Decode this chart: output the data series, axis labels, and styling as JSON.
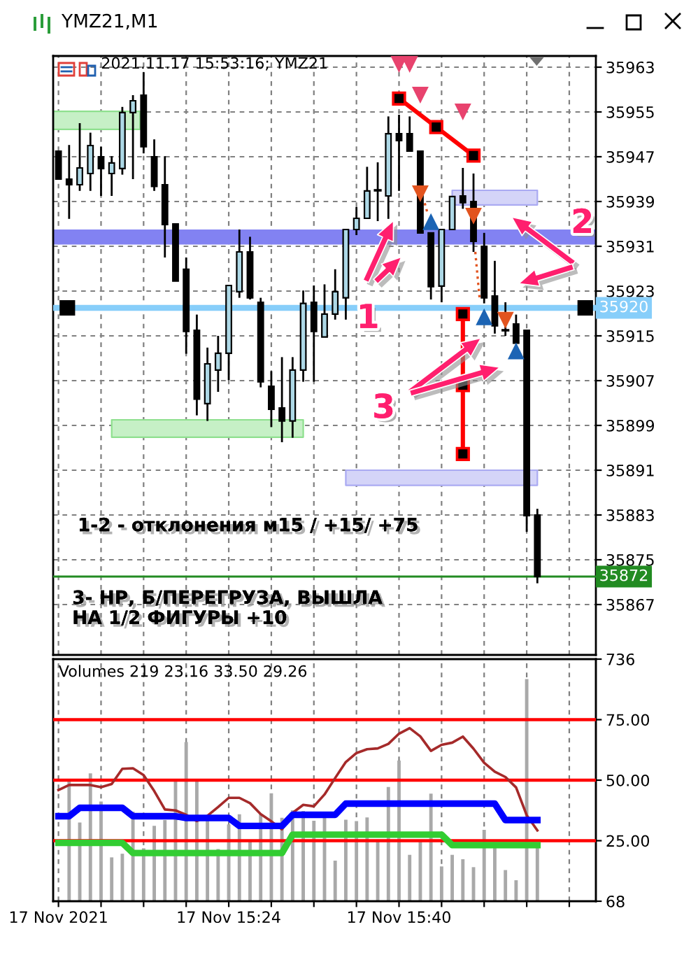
{
  "chart_data": [
    {
      "type": "candlestick",
      "title": "YMZ21,M1",
      "x": [
        "2021-11-17T15:08",
        "2021-11-17T15:09",
        "2021-11-17T15:10",
        "2021-11-17T15:11",
        "2021-11-17T15:12",
        "2021-11-17T15:13",
        "2021-11-17T15:14",
        "2021-11-17T15:15",
        "2021-11-17T15:16",
        "2021-11-17T15:17",
        "2021-11-17T15:18",
        "2021-11-17T15:19",
        "2021-11-17T15:20",
        "2021-11-17T15:21",
        "2021-11-17T15:22",
        "2021-11-17T15:23",
        "2021-11-17T15:24",
        "2021-11-17T15:25",
        "2021-11-17T15:26",
        "2021-11-17T15:27",
        "2021-11-17T15:28",
        "2021-11-17T15:29",
        "2021-11-17T15:30",
        "2021-11-17T15:31",
        "2021-11-17T15:32",
        "2021-11-17T15:33",
        "2021-11-17T15:34",
        "2021-11-17T15:35",
        "2021-11-17T15:36",
        "2021-11-17T15:37",
        "2021-11-17T15:38",
        "2021-11-17T15:39",
        "2021-11-17T15:40",
        "2021-11-17T15:41",
        "2021-11-17T15:42",
        "2021-11-17T15:43",
        "2021-11-17T15:44",
        "2021-11-17T15:45",
        "2021-11-17T15:46",
        "2021-11-17T15:47",
        "2021-11-17T15:48",
        "2021-11-17T15:49",
        "2021-11-17T15:50",
        "2021-11-17T15:51",
        "2021-11-17T15:52",
        "2021-11-17T15:53"
      ],
      "ohlc": [
        [
          35948.0,
          35948.0,
          35943.0,
          35943.0
        ],
        [
          35943.0,
          35949.1,
          35935.9,
          35942.0
        ],
        [
          35942.0,
          35953.0,
          35940.9,
          35945.0
        ],
        [
          35944.0,
          35951.3,
          35940.9,
          35949.0
        ],
        [
          35947.0,
          35948.8,
          35940.0,
          35944.9
        ],
        [
          35944.0,
          35947.1,
          35940.0,
          35945.9
        ],
        [
          35944.9,
          35955.9,
          35943.8,
          35954.9
        ],
        [
          35954.9,
          35958.0,
          35943.0,
          35957.0
        ],
        [
          35958.0,
          35962.1,
          35947.6,
          35948.8
        ],
        [
          35947.0,
          35950.1,
          35940.9,
          35941.7
        ],
        [
          35942.0,
          35947.1,
          35929.0,
          35934.9
        ],
        [
          35935.0,
          35935.0,
          35924.8,
          35924.8
        ],
        [
          35926.9,
          35929.0,
          35911.8,
          35915.8
        ],
        [
          35916.0,
          35918.8,
          35900.8,
          35903.7
        ],
        [
          35902.9,
          35912.9,
          35899.8,
          35910.0
        ],
        [
          35908.9,
          35915.0,
          35905.0,
          35911.9
        ],
        [
          35911.9,
          35924.0,
          35907.1,
          35924.0
        ],
        [
          35922.9,
          35934.0,
          35921.8,
          35930.0
        ],
        [
          35930.0,
          35932.7,
          35921.5,
          35921.8
        ],
        [
          35921.0,
          35921.8,
          35905.8,
          35906.8
        ],
        [
          35906.0,
          35908.7,
          35898.7,
          35901.9
        ],
        [
          35902.1,
          35911.2,
          35896.0,
          35899.8
        ],
        [
          35899.8,
          35911.2,
          35896.8,
          35908.9
        ],
        [
          35908.9,
          35923.1,
          35906.8,
          35920.8
        ],
        [
          35921.0,
          35924.0,
          35906.8,
          35915.8
        ],
        [
          35914.8,
          35924.2,
          35914.8,
          35918.9
        ],
        [
          35918.9,
          35926.9,
          35917.9,
          35922.9
        ],
        [
          35921.8,
          35934.0,
          35917.9,
          35934.0
        ],
        [
          35934.0,
          35938.0,
          35933.0,
          35936.0
        ],
        [
          35936.0,
          35945.2,
          35936.0,
          35940.9
        ],
        [
          35941.0,
          35946.0,
          35935.5,
          35941.0
        ],
        [
          35940.0,
          35954.2,
          35935.9,
          35951.1
        ],
        [
          35951.1,
          35954.5,
          35940.9,
          35949.9
        ],
        [
          35951.1,
          35954.2,
          35948.0,
          35948.0
        ],
        [
          35948.0,
          35948.0,
          35933.4,
          35933.4
        ],
        [
          35933.4,
          35933.4,
          35921.5,
          35923.8
        ],
        [
          35923.9,
          35934.0,
          35921.0,
          35934.0
        ],
        [
          35934.0,
          35939.9,
          35934.0,
          35939.9
        ],
        [
          35940.0,
          35945.0,
          35937.7,
          35938.8
        ],
        [
          35939.0,
          35944.0,
          35930.0,
          35931.9
        ],
        [
          35931.0,
          35933.4,
          35920.8,
          35921.8
        ],
        [
          35922.1,
          35928.4,
          35915.4,
          35916.8
        ],
        [
          35916.0,
          35921.0,
          35915.0,
          35916.0
        ],
        [
          35917.1,
          35918.8,
          35913.7,
          35913.7
        ],
        [
          35916.0,
          35916.0,
          35880.0,
          35882.9
        ],
        [
          35883.0,
          35884.1,
          35870.8,
          35872.0
        ]
      ],
      "colors": [
        "#000000",
        "#000000",
        "#add8e6",
        "#add8e6",
        "#000000",
        "#add8e6",
        "#add8e6",
        "#add8e6",
        "#000000",
        "#000000",
        "#000000",
        "#000000",
        "#000000",
        "#000000",
        "#add8e6",
        "#add8e6",
        "#add8e6",
        "#add8e6",
        "#000000",
        "#000000",
        "#000000",
        "#000000",
        "#add8e6",
        "#add8e6",
        "#000000",
        "#add8e6",
        "#add8e6",
        "#add8e6",
        "#add8e6",
        "#add8e6",
        "#000000",
        "#add8e6",
        "#000000",
        "#000000",
        "#000000",
        "#000000",
        "#add8e6",
        "#add8e6",
        "#000000",
        "#000000",
        "#000000",
        "#000000",
        "#000000",
        "#000000",
        "#000000",
        "#000000"
      ],
      "xlim": [
        "2021-11-17T15:07:30",
        "2021-11-17T15:58:30"
      ],
      "xticks": [
        {
          "value": "2021-11-17T15:08",
          "label": null
        },
        {
          "value": "2021-11-17T15:12",
          "label": null
        },
        {
          "value": "2021-11-17T15:16",
          "label": null
        },
        {
          "value": "2021-11-17T15:20",
          "label": null
        },
        {
          "value": "2021-11-17T15:24",
          "label": null
        },
        {
          "value": "2021-11-17T15:28",
          "label": null
        },
        {
          "value": "2021-11-17T15:32",
          "label": null
        },
        {
          "value": "2021-11-17T15:36",
          "label": null
        },
        {
          "value": "2021-11-17T15:40",
          "label": null
        },
        {
          "value": "2021-11-17T15:44",
          "label": null
        },
        {
          "value": "2021-11-17T15:48",
          "label": null
        },
        {
          "value": "2021-11-17T15:52",
          "label": null
        },
        {
          "value": "2021-11-17T15:56",
          "label": null
        }
      ],
      "ylim": [
        35858,
        35965
      ],
      "yticks": [
        35963,
        35955,
        35947,
        35939,
        35931,
        35923,
        35915,
        35907,
        35899,
        35891,
        35883,
        35875,
        35867
      ],
      "tick_labels": "y",
      "grid": true,
      "bands": [
        {
          "axis": "y",
          "from": 35931.3,
          "to": 35934.0,
          "color": "#8282f2"
        }
      ],
      "ref_lines": [
        {
          "axis": "y",
          "value": 35920,
          "label": "35920",
          "color": "#87cefa"
        },
        {
          "axis": "y",
          "value": 35872,
          "label": "35872",
          "color": "#228b22"
        }
      ],
      "series": [
        {
          "type": "line",
          "color": "#8ee08e",
          "x": [
            "2021-11-17T15:07:30",
            "2021-11-17T15:11:35",
            "2021-11-17T15:15:40"
          ],
          "values": [
            null,
            null,
            null
          ],
          "lower": [
            35951.9,
            35951.9,
            35951.9
          ],
          "upper": [
            35955.1,
            35955.1,
            35955.1
          ]
        },
        {
          "type": "line",
          "color": "#8ee08e",
          "x": [
            "2021-11-17T15:13",
            "2021-11-17T15:22",
            "2021-11-17T15:31"
          ],
          "values": [
            null,
            null,
            null
          ],
          "lower": [
            35896.9,
            35896.9,
            35896.9
          ],
          "upper": [
            35900.0,
            35900.0,
            35900.0
          ]
        },
        {
          "type": "line",
          "color": "#aaaaf2",
          "x": [
            "2021-11-17T15:45",
            "2021-11-17T15:49",
            "2021-11-17T15:53"
          ],
          "values": [
            null,
            null,
            null
          ],
          "lower": [
            35938.4,
            35938.4,
            35938.4
          ],
          "upper": [
            35941.0,
            35941.0,
            35941.0
          ]
        },
        {
          "type": "line",
          "color": "#aaaaf2",
          "x": [
            "2021-11-17T15:35",
            "2021-11-17T15:44",
            "2021-11-17T15:53"
          ],
          "values": [
            null,
            null,
            null
          ],
          "lower": [
            35888.3,
            35888.3,
            35888.3
          ],
          "upper": [
            35891.0,
            35891.0,
            35891.0
          ]
        },
        {
          "type": "line",
          "color": "#ff0000",
          "marker": "square",
          "x": [
            "2021-11-17T15:40",
            "2021-11-17T15:43:30",
            "2021-11-17T15:47"
          ],
          "values": [
            35957.4,
            35952.3,
            35947.2
          ]
        },
        {
          "type": "line",
          "color": "#ff0000",
          "marker": "square",
          "x": [
            "2021-11-17T15:46",
            "2021-11-17T15:46",
            "2021-11-17T15:46"
          ],
          "values": [
            35918.9,
            35906.2,
            35893.9
          ]
        },
        {
          "type": "line",
          "color": "#e2541f",
          "line_style": "dotted",
          "x": [
            "2021-11-17T15:42:25",
            "2021-11-17T15:42:40"
          ],
          "values": [
            35938.7,
            35937.0
          ]
        },
        {
          "type": "line",
          "color": "#e2541f",
          "line_style": "dotted",
          "x": [
            "2021-11-17T15:47:10",
            "2021-11-17T15:47:35"
          ],
          "values": [
            35930.0,
            35921.5
          ]
        },
        {
          "type": "scatter",
          "color": "#e8436e",
          "marker": "triangle_down",
          "x": [
            "2021-11-17T15:40",
            "2021-11-17T15:41",
            "2021-11-17T15:42",
            "2021-11-17T15:46"
          ],
          "values": [
            35963.6,
            35963.6,
            35958.1,
            35955.1
          ]
        },
        {
          "type": "scatter",
          "color": "#e2541f",
          "marker": "triangle_down",
          "x": [
            "2021-11-17T15:42",
            "2021-11-17T15:47",
            "2021-11-17T15:50"
          ],
          "values": [
            35940.5,
            35936.5,
            35917.9
          ]
        },
        {
          "type": "scatter",
          "color": "#1c64b4",
          "marker": "triangle",
          "x": [
            "2021-11-17T15:43",
            "2021-11-17T15:48",
            "2021-11-17T15:51"
          ],
          "values": [
            35935.3,
            35918.3,
            35912.2
          ]
        },
        {
          "type": "scatter",
          "color": "#000000",
          "marker": "square",
          "x": [
            "2021-11-17T15:08:50",
            "2021-11-17T15:57:30"
          ],
          "values": [
            35920,
            35920
          ]
        }
      ],
      "annotations": [
        "2021.11.17 15:53:16; YMZ21",
        "1",
        "2",
        "3",
        "1-2 - отклонения м15 / +15/ +75",
        "3- НР, Б/ПЕРЕГРУЗА, ВЫШЛА\nНА 1/2 ФИГУРЫ +10"
      ]
    },
    {
      "type": "bar",
      "title": "Volumes 219 23.16 33.50 29.26",
      "x": [
        "2021-11-17T15:08",
        "2021-11-17T15:09",
        "2021-11-17T15:10",
        "2021-11-17T15:11",
        "2021-11-17T15:12",
        "2021-11-17T15:13",
        "2021-11-17T15:14",
        "2021-11-17T15:15",
        "2021-11-17T15:16",
        "2021-11-17T15:17",
        "2021-11-17T15:18",
        "2021-11-17T15:19",
        "2021-11-17T15:20",
        "2021-11-17T15:21",
        "2021-11-17T15:22",
        "2021-11-17T15:23",
        "2021-11-17T15:24",
        "2021-11-17T15:25",
        "2021-11-17T15:26",
        "2021-11-17T15:27",
        "2021-11-17T15:28",
        "2021-11-17T15:29",
        "2021-11-17T15:30",
        "2021-11-17T15:31",
        "2021-11-17T15:32",
        "2021-11-17T15:33",
        "2021-11-17T15:34",
        "2021-11-17T15:35",
        "2021-11-17T15:36",
        "2021-11-17T15:37",
        "2021-11-17T15:38",
        "2021-11-17T15:39",
        "2021-11-17T15:40",
        "2021-11-17T15:41",
        "2021-11-17T15:42",
        "2021-11-17T15:43",
        "2021-11-17T15:44",
        "2021-11-17T15:45",
        "2021-11-17T15:46",
        "2021-11-17T15:47",
        "2021-11-17T15:48",
        "2021-11-17T15:49",
        "2021-11-17T15:50",
        "2021-11-17T15:51",
        "2021-11-17T15:52",
        "2021-11-17T15:53"
      ],
      "xlim": [
        "2021-11-17T15:07:30",
        "2021-11-17T15:58:30"
      ],
      "xticks": [
        {
          "value": "2021-11-17T15:08",
          "label": "17 Nov 2021"
        },
        {
          "value": "2021-11-17T15:12",
          "label": null
        },
        {
          "value": "2021-11-17T15:16",
          "label": null
        },
        {
          "value": "2021-11-17T15:20",
          "label": null
        },
        {
          "value": "2021-11-17T15:24",
          "label": "17 Nov 15:24"
        },
        {
          "value": "2021-11-17T15:28",
          "label": null
        },
        {
          "value": "2021-11-17T15:32",
          "label": null
        },
        {
          "value": "2021-11-17T15:36",
          "label": null
        },
        {
          "value": "2021-11-17T15:40",
          "label": "17 Nov 15:40"
        },
        {
          "value": "2021-11-17T15:44",
          "label": null
        },
        {
          "value": "2021-11-17T15:48",
          "label": null
        },
        {
          "value": "2021-11-17T15:52",
          "label": null
        },
        {
          "value": "2021-11-17T15:56",
          "label": null
        }
      ],
      "ylim": [
        68,
        736
      ],
      "yticks": [
        68,
        736
      ],
      "y2lim": [
        0,
        100
      ],
      "y2ticks": [
        {
          "value": 25,
          "label": "25.00"
        },
        {
          "value": 50,
          "label": "50.00"
        },
        {
          "value": 75,
          "label": "75.00"
        }
      ],
      "grid": "x",
      "ref_lines": [
        {
          "axis": "y2",
          "value": 75,
          "color": "#ff0000"
        },
        {
          "axis": "y2",
          "value": 50,
          "color": "#ff0000"
        },
        {
          "axis": "y2",
          "value": 25,
          "color": "#ff0000"
        }
      ],
      "series": [
        {
          "color": "#a9a9a9",
          "values": [
            null,
            401,
            285,
            421,
            343,
            189,
            199,
            315,
            214,
            276,
            292,
            401,
            507,
            401,
            292,
            212,
            280,
            308,
            236,
            308,
            366,
            298,
            319,
            317,
            290,
            302,
            180,
            293,
            289,
            299,
            238,
            383,
            456,
            196,
            238,
            365,
            164,
            196,
            184,
            162,
            265,
            216,
            154,
            126,
            681,
            219
          ]
        },
        {
          "type": "line",
          "axis": "y2",
          "color": "#a52a2a",
          "values": [
            45.9,
            48.0,
            48.0,
            48.0,
            47.1,
            48.4,
            54.7,
            54.9,
            52.1,
            45.5,
            37.9,
            37.5,
            35.7,
            33.1,
            35.3,
            38.9,
            42.7,
            42.7,
            40.5,
            36.0,
            33.0,
            29.7,
            36.5,
            39.8,
            39.2,
            44.1,
            50.9,
            57.5,
            61.2,
            62.8,
            63.1,
            65.0,
            69.2,
            71.5,
            68.1,
            62.1,
            64.6,
            65.5,
            68.0,
            63.0,
            57.2,
            53.5,
            51.3,
            47.0,
            35.5,
            29.26
          ]
        },
        {
          "type": "line",
          "axis": "y2",
          "color": "#0000ff",
          "values": [
            35.1,
            35.1,
            38.6,
            38.6,
            38.6,
            38.6,
            38.6,
            35.1,
            35.1,
            35.1,
            35.1,
            35.1,
            34.4,
            34.4,
            34.4,
            34.4,
            34.4,
            31.1,
            31.1,
            31.1,
            31.1,
            31.1,
            35.7,
            35.7,
            35.7,
            35.7,
            35.7,
            40.3,
            40.3,
            40.3,
            40.3,
            40.3,
            40.3,
            40.3,
            40.3,
            40.3,
            40.3,
            40.3,
            40.3,
            40.3,
            40.3,
            40.3,
            33.5,
            33.5,
            33.5,
            33.5
          ]
        },
        {
          "type": "line",
          "axis": "y2",
          "color": "#32cd32",
          "values": [
            24.1,
            24.1,
            24.1,
            24.1,
            24.1,
            24.1,
            24.1,
            19.9,
            19.9,
            19.9,
            19.9,
            19.9,
            19.9,
            19.9,
            19.9,
            19.9,
            19.9,
            19.9,
            19.9,
            19.9,
            19.9,
            19.9,
            27.5,
            27.5,
            27.5,
            27.5,
            27.5,
            27.5,
            27.5,
            27.5,
            27.5,
            27.5,
            27.5,
            27.5,
            27.5,
            27.5,
            27.5,
            23.16,
            23.16,
            23.16,
            23.16,
            23.16,
            23.16,
            23.16,
            23.16,
            23.16
          ]
        }
      ]
    }
  ]
}
